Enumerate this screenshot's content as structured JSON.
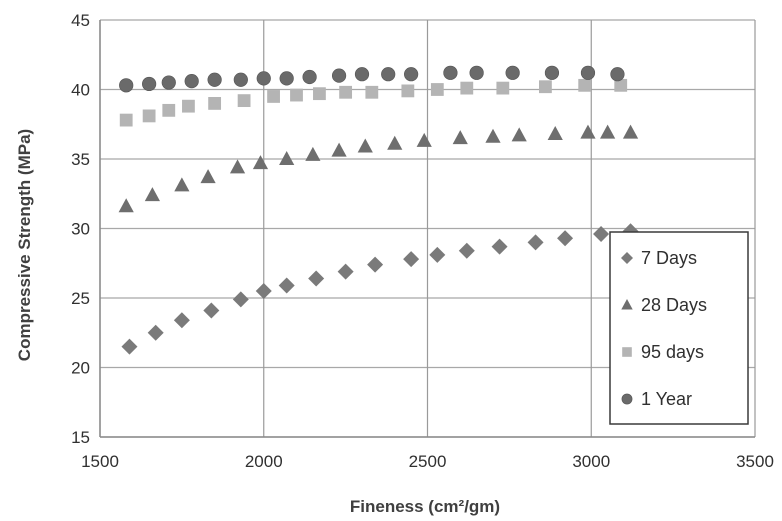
{
  "chart_data": {
    "type": "scatter",
    "title": "",
    "xlabel": "Fineness (cm²/gm)",
    "ylabel": "Compressive Strength (MPa)",
    "xlim": [
      1500,
      3500
    ],
    "ylim": [
      15,
      45
    ],
    "x_ticks": [
      1500,
      2000,
      2500,
      3000,
      3500
    ],
    "y_ticks": [
      15,
      20,
      25,
      30,
      35,
      40,
      45
    ],
    "grid": true,
    "legend_position": "bottom-right",
    "series": [
      {
        "name": "7 Days",
        "marker": "diamond",
        "color": "#7a7a7a",
        "points": [
          [
            1590,
            21.5
          ],
          [
            1670,
            22.5
          ],
          [
            1750,
            23.4
          ],
          [
            1840,
            24.1
          ],
          [
            1930,
            24.9
          ],
          [
            2000,
            25.5
          ],
          [
            2070,
            25.9
          ],
          [
            2160,
            26.4
          ],
          [
            2250,
            26.9
          ],
          [
            2340,
            27.4
          ],
          [
            2450,
            27.8
          ],
          [
            2530,
            28.1
          ],
          [
            2620,
            28.4
          ],
          [
            2720,
            28.7
          ],
          [
            2830,
            29.0
          ],
          [
            2920,
            29.3
          ],
          [
            3030,
            29.6
          ],
          [
            3120,
            29.8
          ]
        ]
      },
      {
        "name": "28 Days",
        "marker": "triangle",
        "color": "#6e6e6e",
        "points": [
          [
            1580,
            31.6
          ],
          [
            1660,
            32.4
          ],
          [
            1750,
            33.1
          ],
          [
            1830,
            33.7
          ],
          [
            1920,
            34.4
          ],
          [
            1990,
            34.7
          ],
          [
            2070,
            35.0
          ],
          [
            2150,
            35.3
          ],
          [
            2230,
            35.6
          ],
          [
            2310,
            35.9
          ],
          [
            2400,
            36.1
          ],
          [
            2490,
            36.3
          ],
          [
            2600,
            36.5
          ],
          [
            2700,
            36.6
          ],
          [
            2780,
            36.7
          ],
          [
            2890,
            36.8
          ],
          [
            2990,
            36.9
          ],
          [
            3050,
            36.9
          ],
          [
            3120,
            36.9
          ]
        ]
      },
      {
        "name": "95 days",
        "marker": "square",
        "color": "#b4b4b4",
        "points": [
          [
            1580,
            37.8
          ],
          [
            1650,
            38.1
          ],
          [
            1710,
            38.5
          ],
          [
            1770,
            38.8
          ],
          [
            1850,
            39.0
          ],
          [
            1940,
            39.2
          ],
          [
            2030,
            39.5
          ],
          [
            2100,
            39.6
          ],
          [
            2170,
            39.7
          ],
          [
            2250,
            39.8
          ],
          [
            2330,
            39.8
          ],
          [
            2440,
            39.9
          ],
          [
            2530,
            40.0
          ],
          [
            2620,
            40.1
          ],
          [
            2730,
            40.1
          ],
          [
            2860,
            40.2
          ],
          [
            2980,
            40.3
          ],
          [
            3090,
            40.3
          ]
        ]
      },
      {
        "name": "1 Year",
        "marker": "circle",
        "color": "#6a6a6a",
        "points": [
          [
            1580,
            40.3
          ],
          [
            1650,
            40.4
          ],
          [
            1710,
            40.5
          ],
          [
            1780,
            40.6
          ],
          [
            1850,
            40.7
          ],
          [
            1930,
            40.7
          ],
          [
            2000,
            40.8
          ],
          [
            2070,
            40.8
          ],
          [
            2140,
            40.9
          ],
          [
            2230,
            41.0
          ],
          [
            2300,
            41.1
          ],
          [
            2380,
            41.1
          ],
          [
            2450,
            41.1
          ],
          [
            2570,
            41.2
          ],
          [
            2650,
            41.2
          ],
          [
            2760,
            41.2
          ],
          [
            2880,
            41.2
          ],
          [
            2990,
            41.2
          ],
          [
            3080,
            41.1
          ]
        ]
      }
    ]
  }
}
